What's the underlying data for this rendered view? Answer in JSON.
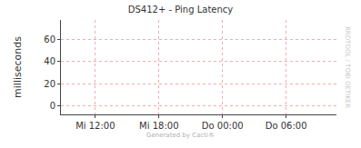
{
  "chart_data": {
    "type": "line",
    "title": "DS412+ - Ping Latency",
    "y_label": "milliseconds",
    "series": [],
    "xlim": [
      8.75,
      34.75
    ],
    "xticks": [
      {
        "value": 12,
        "label": "Mi 12:00"
      },
      {
        "value": 18,
        "label": "Mi 18:00"
      },
      {
        "value": 24,
        "label": "Do 00:00"
      },
      {
        "value": 30,
        "label": "Do 06:00"
      }
    ],
    "ylim": [
      -8,
      78
    ],
    "yticks": [
      0,
      20,
      40,
      60
    ],
    "grid": true,
    "annotations": [
      "RRDTOOL / TOBI OETIKER",
      "Generated by Cacti®"
    ]
  }
}
